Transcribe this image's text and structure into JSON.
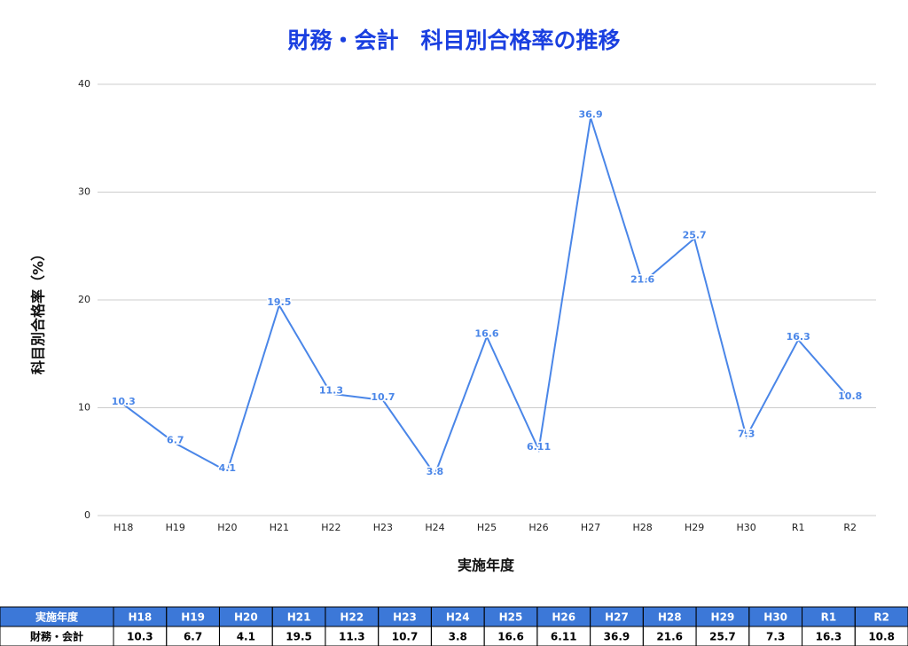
{
  "chart_data": {
    "type": "line",
    "title": "財務・会計　科目別合格率の推移",
    "x_label": "実施年度",
    "y_label": "科目別合格率（%）",
    "categories": [
      "H18",
      "H19",
      "H20",
      "H21",
      "H22",
      "H23",
      "H24",
      "H25",
      "H26",
      "H27",
      "H28",
      "H29",
      "H30",
      "R1",
      "R2"
    ],
    "series": [
      {
        "name": "財務・会計",
        "color": "#4a86e8",
        "values": [
          10.3,
          6.7,
          4.1,
          19.5,
          11.3,
          10.7,
          3.8,
          16.6,
          6.11,
          36.9,
          21.6,
          25.7,
          7.3,
          16.3,
          10.8
        ]
      }
    ],
    "ylim": [
      0,
      40
    ],
    "yticks": [
      0,
      10,
      20,
      30,
      40
    ],
    "grid": true
  }
}
